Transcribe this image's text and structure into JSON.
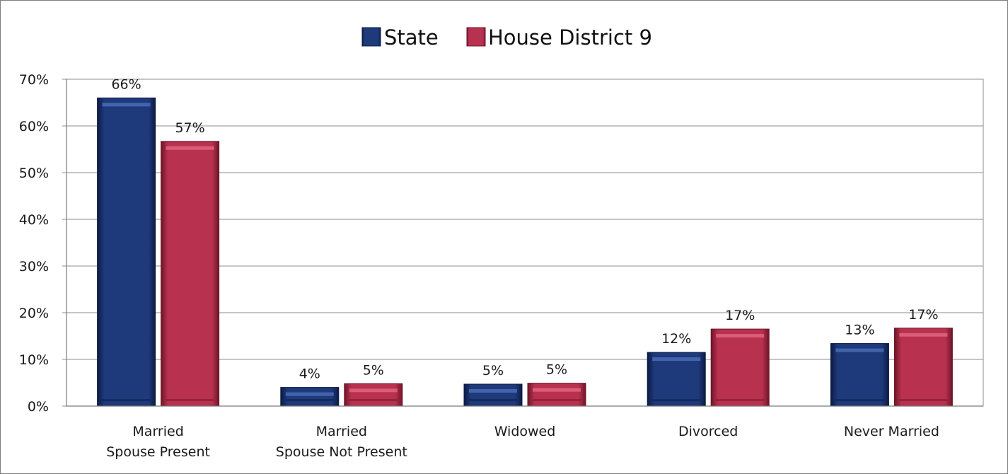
{
  "chart_data": {
    "type": "bar",
    "categories": [
      [
        "Married",
        "Spouse Present"
      ],
      [
        "Married",
        "Spouse Not Present"
      ],
      [
        "Widowed"
      ],
      [
        "Divorced"
      ],
      [
        "Never Married"
      ]
    ],
    "series": [
      {
        "name": "State",
        "values": [
          66,
          4,
          4.7,
          11.5,
          13.4
        ],
        "labels": [
          "66%",
          "4%",
          "5%",
          "12%",
          "13%"
        ],
        "color": "#1f3a7a",
        "dark": "#0c1a45",
        "light": "#4a6cb5"
      },
      {
        "name": "House District 9",
        "values": [
          56.7,
          4.8,
          4.9,
          16.5,
          16.7
        ],
        "labels": [
          "57%",
          "5%",
          "5%",
          "17%",
          "17%"
        ],
        "color": "#b8314f",
        "dark": "#6e1528",
        "light": "#e0657f"
      }
    ],
    "ylim": [
      0,
      70
    ],
    "yticks": [
      0,
      10,
      20,
      30,
      40,
      50,
      60,
      70
    ],
    "ytick_labels": [
      "0%",
      "10%",
      "20%",
      "30%",
      "40%",
      "50%",
      "60%",
      "70%"
    ],
    "grid": true,
    "legend_position": "top-center"
  }
}
